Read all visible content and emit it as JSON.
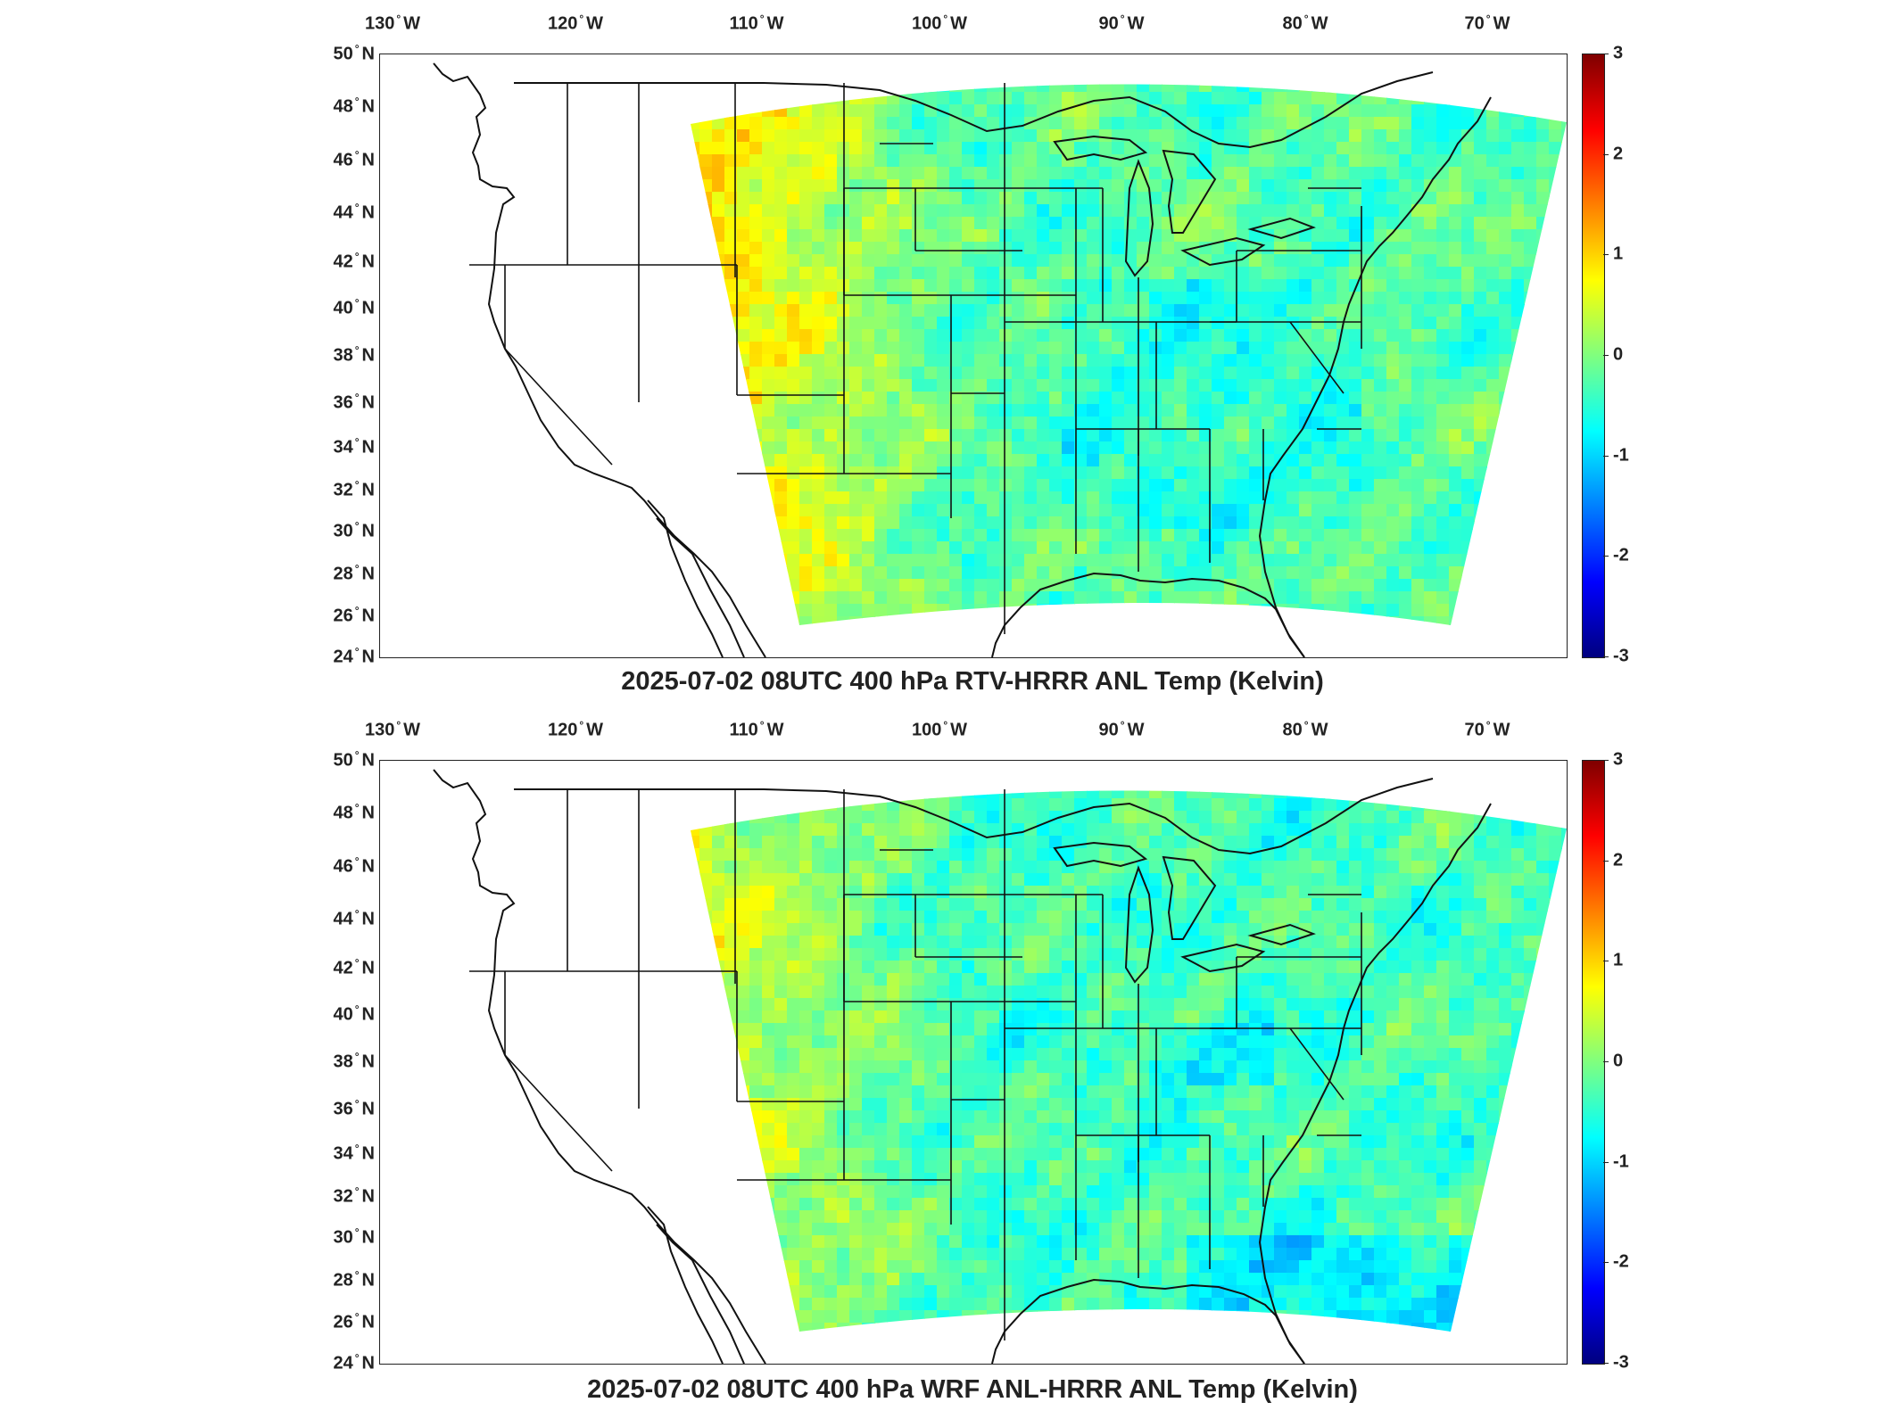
{
  "panels": [
    {
      "title": "2025-07-02 08UTC 400 hPa RTV-HRRR ANL Temp (Kelvin)",
      "field_bias": "warm-west",
      "lon_labels": [
        "130",
        "120",
        "110",
        "100",
        "90",
        "80",
        "70"
      ],
      "lat_labels": [
        "50",
        "48",
        "46",
        "44",
        "42",
        "40",
        "38",
        "36",
        "34",
        "32",
        "30",
        "28",
        "26",
        "24"
      ],
      "lon_suffix": "W",
      "lat_suffix": "N",
      "colorbar_ticks": [
        "3",
        "2",
        "1",
        "0",
        "-1",
        "-2",
        "-3"
      ]
    },
    {
      "title": "2025-07-02 08UTC 400 hPa WRF ANL-HRRR ANL Temp (Kelvin)",
      "field_bias": "cool-east",
      "lon_labels": [
        "130",
        "120",
        "110",
        "100",
        "90",
        "80",
        "70"
      ],
      "lat_labels": [
        "50",
        "48",
        "46",
        "44",
        "42",
        "40",
        "38",
        "36",
        "34",
        "32",
        "30",
        "28",
        "26",
        "24"
      ],
      "lon_suffix": "W",
      "lat_suffix": "N",
      "colorbar_ticks": [
        "3",
        "2",
        "1",
        "0",
        "-1",
        "-2",
        "-3"
      ]
    }
  ],
  "colormap": [
    "#00007f",
    "#0000ff",
    "#007fff",
    "#00ffff",
    "#7fff7f",
    "#ffff00",
    "#ff7f00",
    "#ff0000",
    "#7f0000"
  ],
  "colorbar_range": [
    -3,
    3
  ],
  "degree_symbol": "°"
}
